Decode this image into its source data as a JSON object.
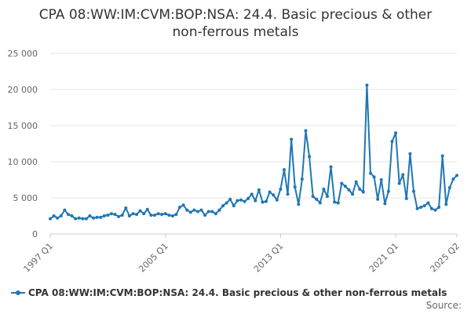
{
  "chart_data": {
    "type": "line",
    "title_lines": [
      "CPA 08:WW:IM:CVM:BOP:NSA: 24.4. Basic precious & other",
      "non-ferrous metals"
    ],
    "xlabel": "",
    "ylabel": "",
    "ylim": [
      0,
      25000
    ],
    "yticks": [
      0,
      5000,
      10000,
      15000,
      20000,
      25000
    ],
    "ytick_labels": [
      "0",
      "5 000",
      "10 000",
      "15 000",
      "20 000",
      "25 000"
    ],
    "x_start": "1997 Q1",
    "x_end": "2025 Q2",
    "xtick_labels": [
      {
        "label": "1997 Q1",
        "index": 0
      },
      {
        "label": "2005 Q1",
        "index": 32
      },
      {
        "label": "2013 Q1",
        "index": 64
      },
      {
        "label": "2021 Q1",
        "index": 96
      },
      {
        "label": "2025 Q2",
        "index": 113
      }
    ],
    "grid": true,
    "legend_position": "bottom-left",
    "source_label": "Source:",
    "series": [
      {
        "name": "CPA 08:WW:IM:CVM:BOP:NSA: 24.4. Basic precious & other non-ferrous metals",
        "color": "#1f77b4",
        "values": [
          2100,
          2500,
          2200,
          2500,
          3300,
          2700,
          2500,
          2100,
          2200,
          2100,
          2100,
          2500,
          2200,
          2300,
          2300,
          2500,
          2600,
          2800,
          2700,
          2400,
          2600,
          3600,
          2500,
          2800,
          2700,
          3200,
          2800,
          3400,
          2600,
          2600,
          2800,
          2700,
          2800,
          2600,
          2500,
          2700,
          3700,
          4000,
          3300,
          3000,
          3300,
          3100,
          3300,
          2600,
          3100,
          3100,
          2800,
          3300,
          3900,
          4300,
          4800,
          3900,
          4600,
          4700,
          4500,
          4900,
          5500,
          4600,
          6100,
          4400,
          4500,
          5800,
          5400,
          4700,
          6200,
          8900,
          5500,
          13100,
          6500,
          4100,
          7600,
          14300,
          10700,
          5200,
          4800,
          4300,
          6200,
          5200,
          9300,
          4400,
          4300,
          7000,
          6600,
          6100,
          5500,
          7200,
          6200,
          5800,
          20600,
          8400,
          7900,
          4800,
          7500,
          4200,
          5900,
          12800,
          14000,
          7000,
          8200,
          4900,
          11100,
          5900,
          3500,
          3700,
          3900,
          4300,
          3500,
          3300,
          3700,
          10800,
          4100,
          6400,
          7600,
          8100
        ]
      }
    ]
  },
  "legend": {
    "label": "CPA 08:WW:IM:CVM:BOP:NSA: 24.4. Basic precious & other non-ferrous metals"
  }
}
